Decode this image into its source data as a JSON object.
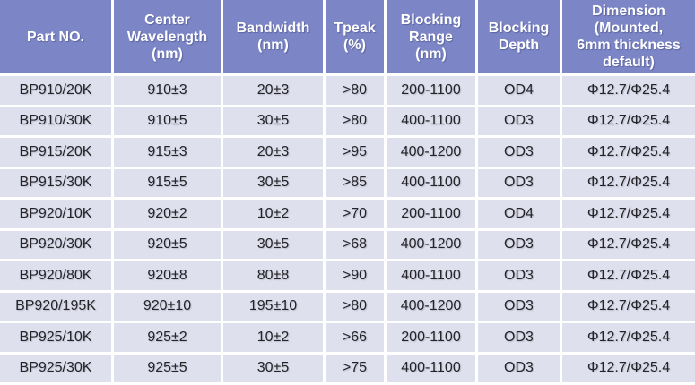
{
  "chart_data": {
    "type": "table",
    "columns": [
      "Part NO.",
      "Center Wavelength (nm)",
      "Bandwidth (nm)",
      "Tpeak (%)",
      "Blocking Range (nm)",
      "Blocking Depth",
      "Dimension (Mounted, 6mm thickness default)"
    ],
    "columns_display": [
      "Part NO.",
      "Center\nWavelength\n(nm)",
      "Bandwidth\n(nm)",
      "Tpeak\n(%)",
      "Blocking\nRange\n(nm)",
      "Blocking\nDepth",
      "Dimension\n(Mounted,\n6mm thickness\ndefault)"
    ],
    "rows": [
      [
        "BP910/20K",
        "910±3",
        "20±3",
        ">80",
        "200-1100",
        "OD4",
        "Φ12.7/Φ25.4"
      ],
      [
        "BP910/30K",
        "910±5",
        "30±5",
        ">80",
        "400-1100",
        "OD3",
        "Φ12.7/Φ25.4"
      ],
      [
        "BP915/20K",
        "915±3",
        "20±3",
        ">95",
        "400-1200",
        "OD3",
        "Φ12.7/Φ25.4"
      ],
      [
        "BP915/30K",
        "915±5",
        "30±5",
        ">85",
        "400-1100",
        "OD3",
        "Φ12.7/Φ25.4"
      ],
      [
        "BP920/10K",
        "920±2",
        "10±2",
        ">70",
        "200-1100",
        "OD4",
        "Φ12.7/Φ25.4"
      ],
      [
        "BP920/30K",
        "920±5",
        "30±5",
        ">68",
        "400-1200",
        "OD3",
        "Φ12.7/Φ25.4"
      ],
      [
        "BP920/80K",
        "920±8",
        "80±8",
        ">90",
        "400-1100",
        "OD3",
        "Φ12.7/Φ25.4"
      ],
      [
        "BP920/195K",
        "920±10",
        "195±10",
        ">80",
        "400-1200",
        "OD3",
        "Φ12.7/Φ25.4"
      ],
      [
        "BP925/10K",
        "925±2",
        "10±2",
        ">66",
        "200-1100",
        "OD3",
        "Φ12.7/Φ25.4"
      ],
      [
        "BP925/30K",
        "925±5",
        "30±5",
        ">75",
        "400-1100",
        "OD3",
        "Φ12.7/Φ25.4"
      ]
    ]
  },
  "colors": {
    "header_bg": "#7C86C7",
    "header_text": "#FFFFFF",
    "cell_bg": "#DFE0EE",
    "cell_text": "#242428",
    "grid_gap": "#FFFFFF"
  }
}
